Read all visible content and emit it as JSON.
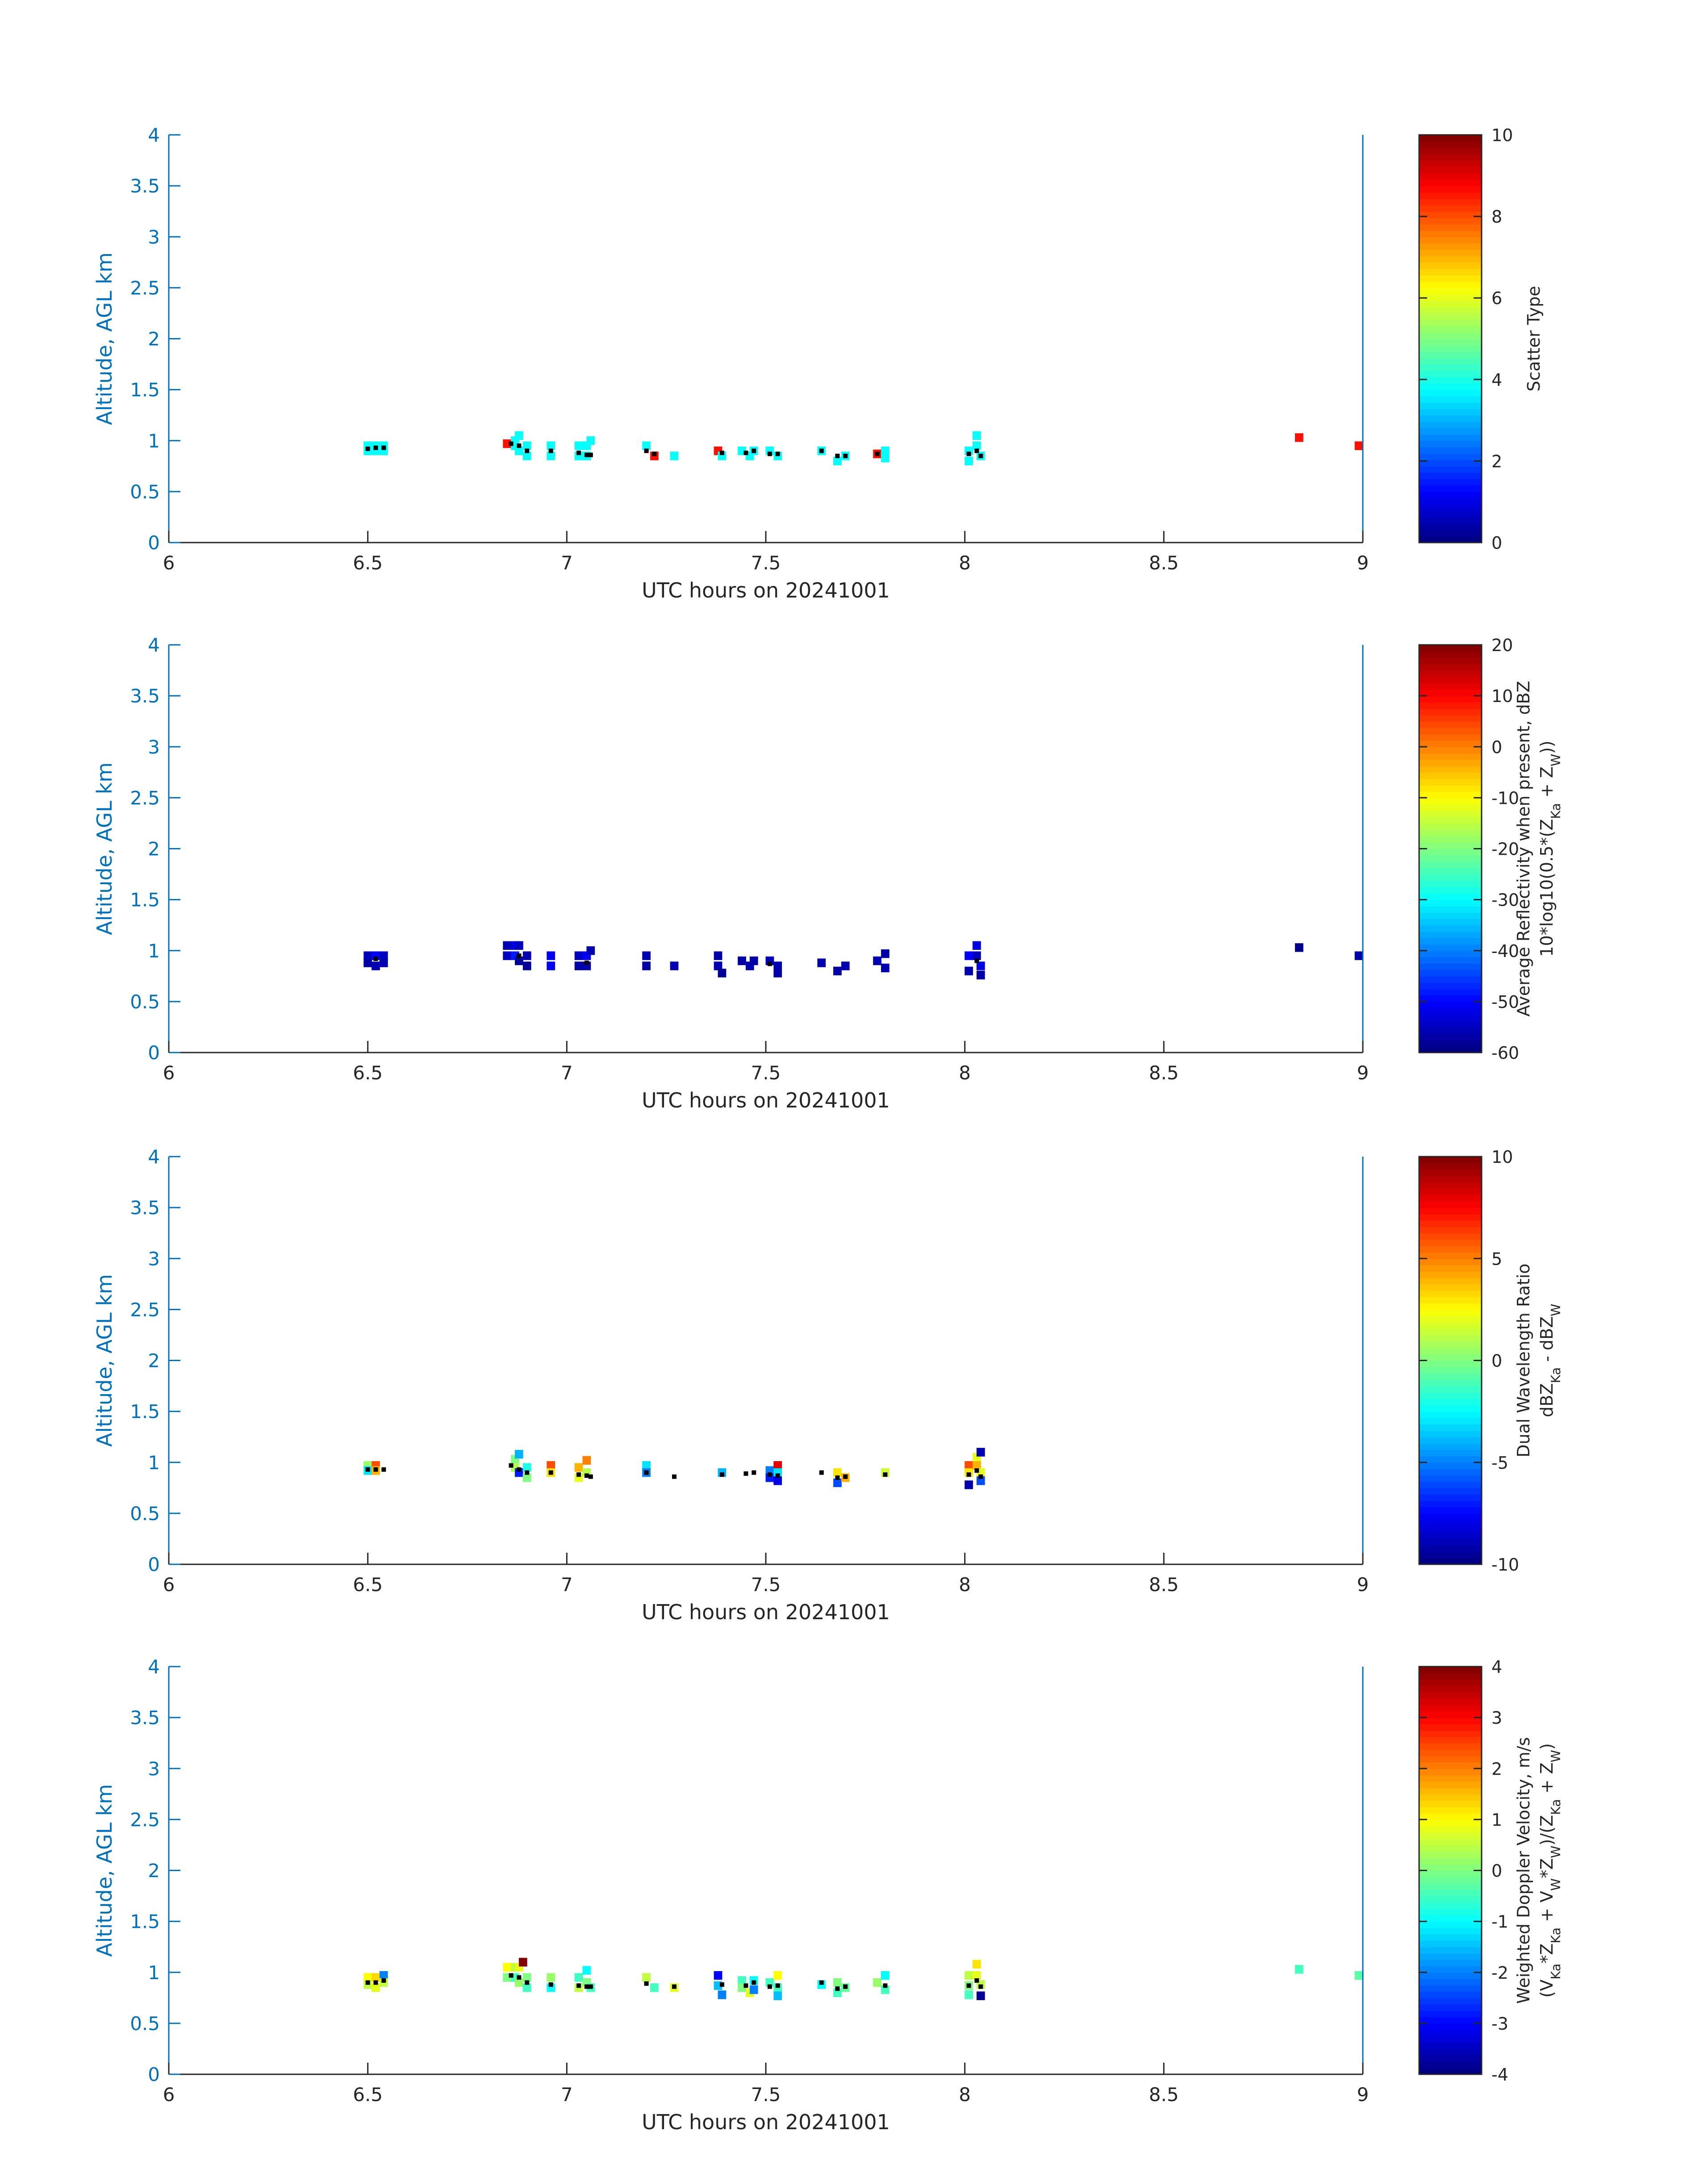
{
  "colors": {
    "axis_left": "#0072BD",
    "axis_dark": "#262626",
    "marker": "#000000",
    "colormap": "jet"
  },
  "chart_data": [
    {
      "type": "heatmap",
      "xlabel": "UTC hours on 20241001",
      "ylabel": "Altitude, AGL km",
      "xlim": [
        6,
        9
      ],
      "ylim": [
        0,
        4
      ],
      "xticks": [
        "6",
        "6.5",
        "7",
        "7.5",
        "8",
        "8.5",
        "9"
      ],
      "yticks": [
        "0",
        "0.5",
        "1",
        "1.5",
        "2",
        "2.5",
        "3",
        "3.5",
        "4"
      ],
      "colorbar": {
        "label_lines": [
          "Scatter Type"
        ],
        "range": [
          0,
          10
        ],
        "ticks": [
          "0",
          "2",
          "4",
          "6",
          "8",
          "10"
        ]
      },
      "cells": [
        [
          6.5,
          0.95,
          3.8
        ],
        [
          6.5,
          0.9,
          3.8
        ],
        [
          6.52,
          0.95,
          3.8
        ],
        [
          6.52,
          0.9,
          3.8
        ],
        [
          6.54,
          0.95,
          3.8
        ],
        [
          6.54,
          0.9,
          3.8
        ],
        [
          6.85,
          0.97,
          8.6
        ],
        [
          6.87,
          1.0,
          3.8
        ],
        [
          6.87,
          0.95,
          3.8
        ],
        [
          6.88,
          1.05,
          3.8
        ],
        [
          6.88,
          0.9,
          3.8
        ],
        [
          6.9,
          0.95,
          3.8
        ],
        [
          6.9,
          0.85,
          3.8
        ],
        [
          6.96,
          0.95,
          3.8
        ],
        [
          6.96,
          0.85,
          3.8
        ],
        [
          7.03,
          0.95,
          3.8
        ],
        [
          7.03,
          0.85,
          3.8
        ],
        [
          7.05,
          0.95,
          3.8
        ],
        [
          7.05,
          0.85,
          3.8
        ],
        [
          7.06,
          1.0,
          3.8
        ],
        [
          7.2,
          0.95,
          3.8
        ],
        [
          7.22,
          0.85,
          8.6
        ],
        [
          7.27,
          0.85,
          3.8
        ],
        [
          7.38,
          0.9,
          8.6
        ],
        [
          7.39,
          0.85,
          3.8
        ],
        [
          7.44,
          0.9,
          3.8
        ],
        [
          7.46,
          0.85,
          3.8
        ],
        [
          7.47,
          0.9,
          3.8
        ],
        [
          7.51,
          0.9,
          3.8
        ],
        [
          7.53,
          0.85,
          3.8
        ],
        [
          7.64,
          0.9,
          3.8
        ],
        [
          7.68,
          0.8,
          3.8
        ],
        [
          7.7,
          0.85,
          3.8
        ],
        [
          7.78,
          0.87,
          8.6
        ],
        [
          7.8,
          0.9,
          3.8
        ],
        [
          7.8,
          0.83,
          3.8
        ],
        [
          8.01,
          0.9,
          3.8
        ],
        [
          8.01,
          0.8,
          3.8
        ],
        [
          8.03,
          1.05,
          3.8
        ],
        [
          8.03,
          0.95,
          3.8
        ],
        [
          8.04,
          0.85,
          3.8
        ],
        [
          8.84,
          1.03,
          8.6
        ],
        [
          8.99,
          0.95,
          8.6
        ]
      ],
      "markers": [
        [
          6.5,
          0.92
        ],
        [
          6.52,
          0.93
        ],
        [
          6.54,
          0.93
        ],
        [
          6.86,
          0.97
        ],
        [
          6.88,
          0.95
        ],
        [
          6.9,
          0.9
        ],
        [
          6.96,
          0.9
        ],
        [
          7.03,
          0.88
        ],
        [
          7.05,
          0.86
        ],
        [
          7.06,
          0.86
        ],
        [
          7.2,
          0.9
        ],
        [
          7.22,
          0.87
        ],
        [
          7.39,
          0.88
        ],
        [
          7.45,
          0.88
        ],
        [
          7.47,
          0.9
        ],
        [
          7.51,
          0.87
        ],
        [
          7.53,
          0.87
        ],
        [
          7.64,
          0.9
        ],
        [
          7.68,
          0.85
        ],
        [
          7.7,
          0.85
        ],
        [
          7.78,
          0.87
        ],
        [
          8.01,
          0.87
        ],
        [
          8.03,
          0.9
        ],
        [
          8.04,
          0.85
        ]
      ]
    },
    {
      "type": "heatmap",
      "xlabel": "UTC hours on 20241001",
      "ylabel": "Altitude, AGL km",
      "xlim": [
        6,
        9
      ],
      "ylim": [
        0,
        4
      ],
      "xticks": [
        "6",
        "6.5",
        "7",
        "7.5",
        "8",
        "8.5",
        "9"
      ],
      "yticks": [
        "0",
        "0.5",
        "1",
        "1.5",
        "2",
        "2.5",
        "3",
        "3.5",
        "4"
      ],
      "colorbar": {
        "label_lines": [
          "Average Reflectivity when present, dBZ",
          "10*log10(0.5*(Z_Ka + Z_W))"
        ],
        "range": [
          -60,
          20
        ],
        "ticks": [
          "-60",
          "-50",
          "-40",
          "-30",
          "-20",
          "-10",
          "0",
          "10",
          "20"
        ]
      },
      "cells": [
        [
          6.5,
          0.95,
          -55
        ],
        [
          6.5,
          0.88,
          -57
        ],
        [
          6.52,
          0.95,
          -50
        ],
        [
          6.52,
          0.85,
          -56
        ],
        [
          6.54,
          0.95,
          -55
        ],
        [
          6.54,
          0.88,
          -56
        ],
        [
          6.85,
          1.05,
          -56
        ],
        [
          6.85,
          0.95,
          -55
        ],
        [
          6.87,
          1.05,
          -52
        ],
        [
          6.87,
          0.95,
          -48
        ],
        [
          6.88,
          1.05,
          -55
        ],
        [
          6.88,
          0.9,
          -58
        ],
        [
          6.9,
          0.95,
          -56
        ],
        [
          6.9,
          0.85,
          -58
        ],
        [
          6.96,
          0.95,
          -50
        ],
        [
          6.96,
          0.85,
          -50
        ],
        [
          7.03,
          0.95,
          -55
        ],
        [
          7.03,
          0.85,
          -57
        ],
        [
          7.05,
          0.95,
          -50
        ],
        [
          7.05,
          0.85,
          -56
        ],
        [
          7.06,
          1.0,
          -56
        ],
        [
          7.2,
          0.95,
          -56
        ],
        [
          7.2,
          0.85,
          -57
        ],
        [
          7.27,
          0.85,
          -56
        ],
        [
          7.38,
          0.95,
          -57
        ],
        [
          7.38,
          0.85,
          -56
        ],
        [
          7.39,
          0.78,
          -58
        ],
        [
          7.44,
          0.9,
          -57
        ],
        [
          7.46,
          0.85,
          -56
        ],
        [
          7.47,
          0.9,
          -57
        ],
        [
          7.51,
          0.9,
          -55
        ],
        [
          7.53,
          0.85,
          -56
        ],
        [
          7.53,
          0.78,
          -57
        ],
        [
          7.64,
          0.88,
          -56
        ],
        [
          7.68,
          0.8,
          -57
        ],
        [
          7.7,
          0.85,
          -56
        ],
        [
          7.78,
          0.9,
          -56
        ],
        [
          7.8,
          0.83,
          -56
        ],
        [
          7.8,
          0.97,
          -57
        ],
        [
          8.01,
          0.95,
          -50
        ],
        [
          8.01,
          0.8,
          -56
        ],
        [
          8.03,
          1.05,
          -52
        ],
        [
          8.03,
          0.95,
          -55
        ],
        [
          8.04,
          0.85,
          -52
        ],
        [
          8.04,
          0.76,
          -57
        ],
        [
          8.84,
          1.03,
          -59
        ],
        [
          8.99,
          0.95,
          -57
        ]
      ],
      "markers": [
        [
          6.52,
          0.92
        ],
        [
          6.88,
          0.95
        ],
        [
          7.05,
          0.88
        ],
        [
          7.51,
          0.87
        ],
        [
          8.03,
          0.9
        ]
      ]
    },
    {
      "type": "heatmap",
      "xlabel": "UTC hours on 20241001",
      "ylabel": "Altitude, AGL km",
      "xlim": [
        6,
        9
      ],
      "ylim": [
        0,
        4
      ],
      "xticks": [
        "6",
        "6.5",
        "7",
        "7.5",
        "8",
        "8.5",
        "9"
      ],
      "yticks": [
        "0",
        "0.5",
        "1",
        "1.5",
        "2",
        "2.5",
        "3",
        "3.5",
        "4"
      ],
      "colorbar": {
        "label_lines": [
          "Dual Wavelength Ratio",
          "dBZ_Ka - dBZ_W"
        ],
        "range": [
          -10,
          10
        ],
        "ticks": [
          "-10",
          "-5",
          "0",
          "5",
          "10"
        ]
      },
      "cells": [
        [
          6.5,
          0.97,
          0.5
        ],
        [
          6.5,
          0.92,
          -3
        ],
        [
          6.52,
          0.97,
          6
        ],
        [
          6.52,
          0.92,
          4
        ],
        [
          6.87,
          1.03,
          0
        ],
        [
          6.87,
          0.95,
          1
        ],
        [
          6.88,
          1.08,
          -4
        ],
        [
          6.88,
          0.9,
          -7
        ],
        [
          6.9,
          0.95,
          -2
        ],
        [
          6.9,
          0.85,
          0
        ],
        [
          6.96,
          0.97,
          6
        ],
        [
          6.96,
          0.9,
          3
        ],
        [
          7.03,
          0.95,
          4
        ],
        [
          7.03,
          0.85,
          2
        ],
        [
          7.05,
          1.02,
          5
        ],
        [
          7.05,
          0.9,
          1
        ],
        [
          7.2,
          0.97,
          -3
        ],
        [
          7.2,
          0.9,
          -5
        ],
        [
          7.39,
          0.9,
          -4
        ],
        [
          7.51,
          0.92,
          -5
        ],
        [
          7.51,
          0.85,
          -7
        ],
        [
          7.53,
          0.97,
          8
        ],
        [
          7.53,
          0.9,
          -3
        ],
        [
          7.53,
          0.82,
          -8
        ],
        [
          7.68,
          0.9,
          3
        ],
        [
          7.68,
          0.8,
          -6
        ],
        [
          7.7,
          0.85,
          4
        ],
        [
          7.8,
          0.9,
          1.5
        ],
        [
          8.01,
          0.97,
          6
        ],
        [
          8.01,
          0.9,
          3
        ],
        [
          8.01,
          0.78,
          -9
        ],
        [
          8.03,
          1.05,
          2
        ],
        [
          8.03,
          0.97,
          4
        ],
        [
          8.04,
          1.1,
          -9
        ],
        [
          8.04,
          0.9,
          2
        ],
        [
          8.04,
          0.82,
          -6
        ]
      ],
      "markers": [
        [
          6.5,
          0.93
        ],
        [
          6.52,
          0.93
        ],
        [
          6.54,
          0.93
        ],
        [
          6.86,
          0.97
        ],
        [
          6.88,
          0.93
        ],
        [
          6.9,
          0.9
        ],
        [
          6.96,
          0.9
        ],
        [
          7.03,
          0.88
        ],
        [
          7.05,
          0.87
        ],
        [
          7.06,
          0.86
        ],
        [
          7.2,
          0.9
        ],
        [
          7.27,
          0.86
        ],
        [
          7.39,
          0.88
        ],
        [
          7.45,
          0.89
        ],
        [
          7.47,
          0.9
        ],
        [
          7.51,
          0.88
        ],
        [
          7.53,
          0.87
        ],
        [
          7.64,
          0.9
        ],
        [
          7.68,
          0.85
        ],
        [
          7.7,
          0.86
        ],
        [
          7.8,
          0.88
        ],
        [
          8.01,
          0.88
        ],
        [
          8.03,
          0.92
        ],
        [
          8.04,
          0.86
        ]
      ]
    },
    {
      "type": "heatmap",
      "xlabel": "UTC hours on 20241001",
      "ylabel": "Altitude, AGL km",
      "xlim": [
        6,
        9
      ],
      "ylim": [
        0,
        4
      ],
      "xticks": [
        "6",
        "6.5",
        "7",
        "7.5",
        "8",
        "8.5",
        "9"
      ],
      "yticks": [
        "0",
        "0.5",
        "1",
        "1.5",
        "2",
        "2.5",
        "3",
        "3.5",
        "4"
      ],
      "colorbar": {
        "label_lines": [
          "Weighted Doppler Velocity, m/s",
          "(V_Ka*Z_Ka + V_W*Z_W)/(Z_Ka + Z_W)"
        ],
        "range": [
          -4,
          4
        ],
        "ticks": [
          "-4",
          "-3",
          "-2",
          "-1",
          "0",
          "1",
          "2",
          "3",
          "4"
        ]
      },
      "cells": [
        [
          6.5,
          0.95,
          1
        ],
        [
          6.5,
          0.88,
          0.5
        ],
        [
          6.52,
          0.95,
          1.3
        ],
        [
          6.52,
          0.85,
          0.8
        ],
        [
          6.54,
          0.97,
          -2
        ],
        [
          6.54,
          0.9,
          0.5
        ],
        [
          6.85,
          1.05,
          1
        ],
        [
          6.85,
          0.95,
          0
        ],
        [
          6.87,
          1.05,
          0.5
        ],
        [
          6.87,
          0.95,
          -0.5
        ],
        [
          6.88,
          1.05,
          0.8
        ],
        [
          6.88,
          0.9,
          0.2
        ],
        [
          6.89,
          1.1,
          4
        ],
        [
          6.9,
          0.95,
          0
        ],
        [
          6.9,
          0.85,
          -0.5
        ],
        [
          6.96,
          0.95,
          0.2
        ],
        [
          6.96,
          0.85,
          -1
        ],
        [
          7.03,
          0.95,
          -0.5
        ],
        [
          7.03,
          0.85,
          0.5
        ],
        [
          7.05,
          1.02,
          -1
        ],
        [
          7.05,
          0.9,
          0
        ],
        [
          7.06,
          0.85,
          -0.5
        ],
        [
          7.2,
          0.95,
          0.5
        ],
        [
          7.22,
          0.85,
          -0.5
        ],
        [
          7.27,
          0.85,
          0.8
        ],
        [
          7.38,
          0.97,
          -3
        ],
        [
          7.38,
          0.87,
          -1.5
        ],
        [
          7.39,
          0.78,
          -2
        ],
        [
          7.44,
          0.92,
          -0.5
        ],
        [
          7.44,
          0.85,
          0
        ],
        [
          7.46,
          0.8,
          0.8
        ],
        [
          7.47,
          0.92,
          -1
        ],
        [
          7.47,
          0.83,
          -2
        ],
        [
          7.51,
          0.9,
          -0.5
        ],
        [
          7.53,
          0.97,
          1
        ],
        [
          7.53,
          0.85,
          -0.5
        ],
        [
          7.53,
          0.77,
          -1.5
        ],
        [
          7.64,
          0.88,
          -1
        ],
        [
          7.68,
          0.9,
          0
        ],
        [
          7.68,
          0.8,
          -0.5
        ],
        [
          7.7,
          0.85,
          -0.2
        ],
        [
          7.78,
          0.9,
          0.2
        ],
        [
          7.8,
          0.97,
          -1
        ],
        [
          7.8,
          0.83,
          -0.5
        ],
        [
          8.01,
          0.97,
          0.5
        ],
        [
          8.01,
          0.87,
          0
        ],
        [
          8.01,
          0.78,
          -0.5
        ],
        [
          8.03,
          1.08,
          1.2
        ],
        [
          8.03,
          0.97,
          0.8
        ],
        [
          8.04,
          0.88,
          0.5
        ],
        [
          8.04,
          0.77,
          -3.8
        ],
        [
          8.84,
          1.03,
          -0.5
        ],
        [
          8.99,
          0.97,
          -0.3
        ]
      ],
      "markers": [
        [
          6.5,
          0.9
        ],
        [
          6.52,
          0.9
        ],
        [
          6.54,
          0.92
        ],
        [
          6.86,
          0.97
        ],
        [
          6.88,
          0.95
        ],
        [
          6.9,
          0.9
        ],
        [
          6.96,
          0.88
        ],
        [
          7.03,
          0.87
        ],
        [
          7.05,
          0.86
        ],
        [
          7.06,
          0.86
        ],
        [
          7.2,
          0.89
        ],
        [
          7.27,
          0.86
        ],
        [
          7.39,
          0.88
        ],
        [
          7.45,
          0.87
        ],
        [
          7.47,
          0.9
        ],
        [
          7.51,
          0.86
        ],
        [
          7.53,
          0.87
        ],
        [
          7.64,
          0.9
        ],
        [
          7.68,
          0.84
        ],
        [
          7.7,
          0.86
        ],
        [
          7.8,
          0.87
        ],
        [
          8.01,
          0.87
        ],
        [
          8.03,
          0.92
        ],
        [
          8.04,
          0.86
        ]
      ]
    }
  ]
}
